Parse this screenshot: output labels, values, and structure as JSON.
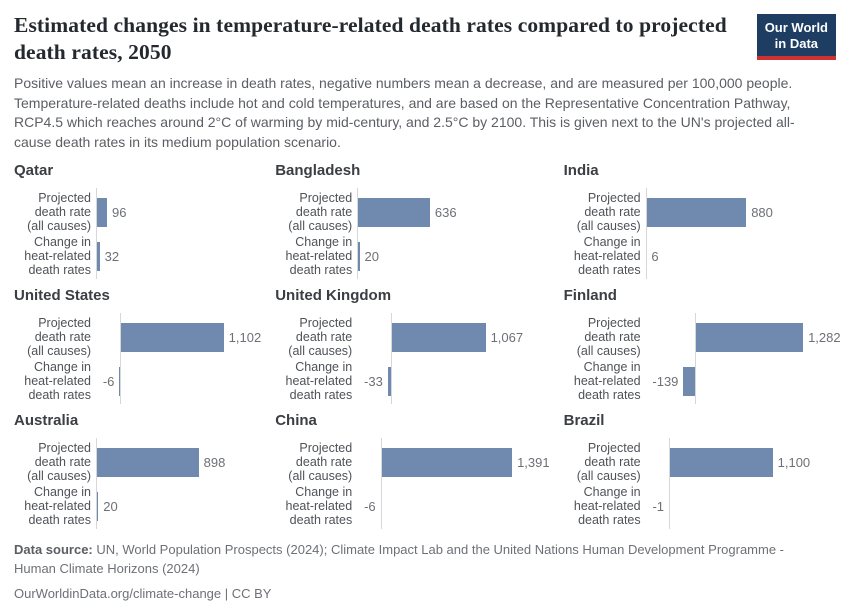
{
  "header": {
    "title": "Estimated changes in temperature-related death rates compared to projected death rates, 2050",
    "logo": {
      "line1": "Our World",
      "line2": "in Data"
    }
  },
  "subtitle": "Positive values mean an increase in death rates, negative numbers mean a decrease, and are measured per 100,000 people. Temperature-related deaths include hot and cold temperatures, and are based on the Representative Concentration Pathway, RCP4.5 which reaches around 2°C of warming by mid-century, and 2.5°C by 2100. This is given next to the UN's projected all-cause death rates in its medium population scenario.",
  "chart_data": {
    "type": "bar",
    "orientation": "horizontal",
    "unit": "per 100,000 people",
    "year": "2050",
    "row_labels": [
      "Projected\ndeath rate\n(all causes)",
      "Change in\nheat-related\ndeath rates"
    ],
    "panels": [
      {
        "country": "Qatar",
        "projected": 96,
        "change": 32,
        "xmax": 1400
      },
      {
        "country": "Bangladesh",
        "projected": 636,
        "change": 20,
        "xmax": 1400
      },
      {
        "country": "India",
        "projected": 880,
        "change": 6,
        "xmax": 1400
      },
      {
        "country": "United States",
        "projected": 1102,
        "change": -6,
        "xmax": 1700
      },
      {
        "country": "United Kingdom",
        "projected": 1067,
        "change": -33,
        "xmax": 1800
      },
      {
        "country": "Finland",
        "projected": 1282,
        "change": -139,
        "xmax": 1900
      },
      {
        "country": "Australia",
        "projected": 898,
        "change": 20,
        "xmax": 1400
      },
      {
        "country": "China",
        "projected": 1391,
        "change": -6,
        "xmax": 1700
      },
      {
        "country": "Brazil",
        "projected": 1100,
        "change": -1,
        "xmax": 1700
      }
    ],
    "grid": false,
    "legend": "none"
  },
  "colors": {
    "bar": "#7089ae",
    "axis": "#d7d7d7",
    "logo_navy": "#1d3d63",
    "logo_red": "#cc3232"
  },
  "footer": {
    "datasource_label": "Data source:",
    "datasource_text": " UN, World Population Prospects (2024); Climate Impact Lab and the United Nations Human Development Programme - Human Climate Horizons (2024)",
    "link_line": "OurWorldinData.org/climate-change | CC BY"
  }
}
